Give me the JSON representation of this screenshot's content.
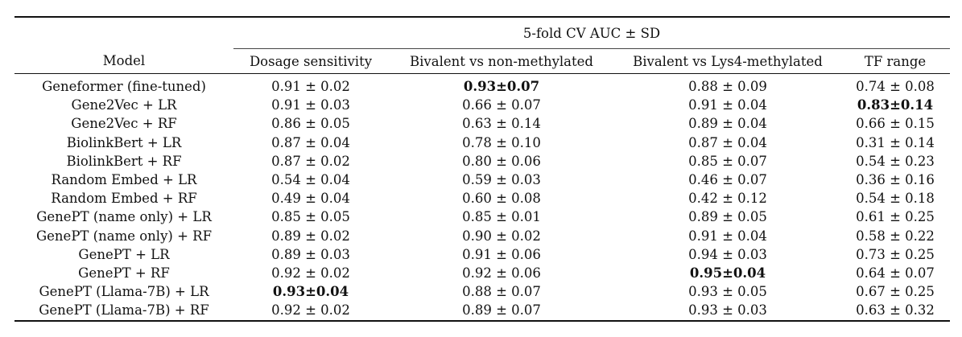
{
  "table": {
    "group_header": "5-fold CV AUC ± SD",
    "model_header": "Model",
    "columns": [
      "Dosage sensitivity",
      "Bivalent vs non-methylated",
      "Bivalent vs Lys4-methylated",
      "TF range"
    ],
    "rows": [
      {
        "model": "Geneformer (fine-tuned)",
        "values": [
          "0.91 ± 0.02",
          "0.93±0.07",
          "0.88 ± 0.09",
          "0.74 ± 0.08"
        ],
        "bold": [
          false,
          true,
          false,
          false
        ]
      },
      {
        "model": "Gene2Vec + LR",
        "values": [
          "0.91 ± 0.03",
          "0.66 ± 0.07",
          "0.91 ± 0.04",
          "0.83±0.14"
        ],
        "bold": [
          false,
          false,
          false,
          true
        ]
      },
      {
        "model": "Gene2Vec + RF",
        "values": [
          "0.86 ± 0.05",
          "0.63 ± 0.14",
          "0.89 ± 0.04",
          "0.66 ± 0.15"
        ],
        "bold": [
          false,
          false,
          false,
          false
        ]
      },
      {
        "model": "BiolinkBert + LR",
        "values": [
          "0.87 ± 0.04",
          "0.78 ± 0.10",
          "0.87 ± 0.04",
          "0.31 ± 0.14"
        ],
        "bold": [
          false,
          false,
          false,
          false
        ]
      },
      {
        "model": "BiolinkBert + RF",
        "values": [
          "0.87 ± 0.02",
          "0.80 ± 0.06",
          "0.85 ± 0.07",
          "0.54 ± 0.23"
        ],
        "bold": [
          false,
          false,
          false,
          false
        ]
      },
      {
        "model": "Random Embed + LR",
        "values": [
          "0.54 ± 0.04",
          "0.59 ± 0.03",
          "0.46 ± 0.07",
          "0.36 ± 0.16"
        ],
        "bold": [
          false,
          false,
          false,
          false
        ]
      },
      {
        "model": "Random Embed + RF",
        "values": [
          "0.49 ± 0.04",
          "0.60 ± 0.08",
          "0.42 ± 0.12",
          "0.54 ± 0.18"
        ],
        "bold": [
          false,
          false,
          false,
          false
        ]
      },
      {
        "model": "GenePT (name only) + LR",
        "values": [
          "0.85 ± 0.05",
          "0.85 ± 0.01",
          "0.89 ± 0.05",
          "0.61 ± 0.25"
        ],
        "bold": [
          false,
          false,
          false,
          false
        ]
      },
      {
        "model": "GenePT (name only) + RF",
        "values": [
          "0.89 ± 0.02",
          "0.90 ± 0.02",
          "0.91 ± 0.04",
          "0.58 ± 0.22"
        ],
        "bold": [
          false,
          false,
          false,
          false
        ]
      },
      {
        "model": "GenePT + LR",
        "values": [
          "0.89 ± 0.03",
          "0.91 ± 0.06",
          "0.94 ± 0.03",
          "0.73 ± 0.25"
        ],
        "bold": [
          false,
          false,
          false,
          false
        ]
      },
      {
        "model": "GenePT + RF",
        "values": [
          "0.92 ± 0.02",
          "0.92 ± 0.06",
          "0.95±0.04",
          "0.64 ± 0.07"
        ],
        "bold": [
          false,
          false,
          true,
          false
        ]
      },
      {
        "model": "GenePT (Llama-7B) + LR",
        "values": [
          "0.93±0.04",
          "0.88 ± 0.07",
          "0.93 ± 0.05",
          "0.67 ± 0.25"
        ],
        "bold": [
          true,
          false,
          false,
          false
        ]
      },
      {
        "model": "GenePT (Llama-7B) + RF",
        "values": [
          "0.92 ± 0.02",
          "0.89 ± 0.07",
          "0.93 ± 0.03",
          "0.63 ± 0.32"
        ],
        "bold": [
          false,
          false,
          false,
          false
        ]
      }
    ]
  }
}
